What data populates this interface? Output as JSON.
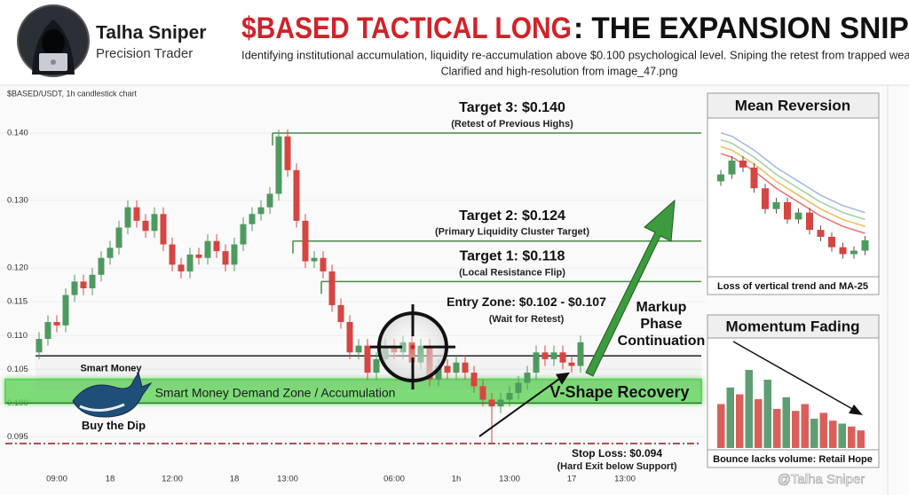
{
  "header": {
    "name": "Talha Sniper",
    "role": "Precision Trader",
    "title_highlight": "$BASED TACTICAL LONG",
    "title_rest": ": THE EXPANSION SNIPE",
    "subtitle": "Identifying institutional accumulation, liquidity re-accumulation above $0.100 psychological level. Sniping the retest from trapped weak",
    "note": "Clarified and high-resolution from image_47.png"
  },
  "chart_data": {
    "type": "candlestick",
    "title": "$BASED/USDT, 1h candlestick chart",
    "up_color": "#4e9a5e",
    "down_color": "#d64541",
    "grid": true,
    "ylim": [
      0.0894,
      0.1442
    ],
    "yticks": [
      {
        "value": 0.14,
        "label": "0.140"
      },
      {
        "value": 0.13,
        "label": "0.130"
      },
      {
        "value": 0.12,
        "label": "0.120"
      },
      0.115,
      {
        "value": 0.11,
        "label": "0.110"
      },
      0.105,
      {
        "value": 0.1,
        "label": "0.100"
      },
      0.095
    ],
    "categories": [
      null,
      null,
      "09:00",
      null,
      null,
      null,
      null,
      null,
      "18",
      null,
      null,
      null,
      null,
      null,
      null,
      "12:00",
      null,
      null,
      null,
      null,
      null,
      null,
      "18",
      null,
      null,
      null,
      null,
      null,
      "13:00",
      null,
      null,
      null,
      null,
      null,
      null,
      null,
      null,
      null,
      null,
      null,
      "06:00",
      null,
      null,
      null,
      null,
      null,
      null,
      "1h",
      null,
      null,
      null,
      null,
      null,
      "13:00",
      null,
      null,
      null,
      null,
      null,
      null,
      "17",
      null,
      null,
      null,
      null,
      null,
      "13:00",
      null
    ],
    "open": [
      0.1075,
      0.1095,
      0.112,
      0.1115,
      0.116,
      0.118,
      0.117,
      0.119,
      0.1215,
      0.123,
      0.126,
      0.129,
      0.127,
      0.1255,
      0.128,
      0.1235,
      0.1205,
      0.1195,
      0.122,
      0.1215,
      0.124,
      0.1225,
      0.1205,
      0.1235,
      0.1265,
      0.128,
      0.129,
      0.131,
      0.1395,
      0.1345,
      0.127,
      0.121,
      0.1215,
      0.1195,
      0.1145,
      0.112,
      0.1075,
      0.1085,
      0.1045,
      0.1065,
      0.1085,
      0.1075,
      0.109,
      0.106,
      0.1085,
      0.1035,
      0.1055,
      0.1045,
      0.106,
      0.1045,
      0.1025,
      0.1005,
      0.0995,
      0.1005,
      0.1015,
      0.103,
      0.1045,
      0.1075,
      0.1065,
      0.1075,
      0.106,
      0.1055,
      null,
      null,
      null,
      null,
      null,
      null
    ],
    "high": [
      0.1105,
      0.113,
      0.113,
      0.117,
      0.119,
      0.119,
      0.12,
      0.1225,
      0.124,
      0.127,
      0.13,
      0.13,
      0.128,
      0.129,
      0.129,
      0.1245,
      0.1215,
      0.123,
      0.123,
      0.125,
      0.125,
      0.1235,
      0.1245,
      0.1275,
      0.129,
      0.13,
      0.132,
      0.1405,
      0.1405,
      0.1355,
      0.128,
      0.1225,
      0.1225,
      0.1205,
      0.1155,
      0.113,
      0.1095,
      0.1095,
      0.1075,
      0.1095,
      0.1095,
      0.11,
      0.11,
      0.1095,
      0.1095,
      0.1065,
      0.1065,
      0.107,
      0.107,
      0.1055,
      0.1035,
      0.1015,
      0.1015,
      0.1025,
      0.104,
      0.1055,
      0.1085,
      0.1085,
      0.1085,
      0.1085,
      0.107,
      0.11,
      null,
      null,
      null,
      null,
      null,
      null
    ],
    "low": [
      0.1065,
      0.1085,
      0.1105,
      0.1105,
      0.115,
      0.116,
      0.116,
      0.118,
      0.1205,
      0.122,
      0.125,
      0.126,
      0.1245,
      0.1245,
      0.1225,
      0.1195,
      0.1185,
      0.1185,
      0.1205,
      0.1205,
      0.1215,
      0.1195,
      0.1195,
      0.1225,
      0.1255,
      0.127,
      0.128,
      0.13,
      0.1335,
      0.126,
      0.12,
      0.12,
      0.1185,
      0.1135,
      0.111,
      0.1065,
      0.1065,
      0.1035,
      0.1035,
      0.1055,
      0.1065,
      0.1065,
      0.105,
      0.105,
      0.1025,
      0.1025,
      0.1035,
      0.1035,
      0.1035,
      0.1015,
      0.0995,
      0.094,
      0.0985,
      0.0995,
      0.1005,
      0.102,
      0.1035,
      0.1055,
      0.1055,
      0.105,
      0.1045,
      0.1045,
      null,
      null,
      null,
      null,
      null,
      null
    ],
    "close": [
      0.1095,
      0.112,
      0.1115,
      0.116,
      0.118,
      0.117,
      0.119,
      0.1215,
      0.123,
      0.126,
      0.129,
      0.127,
      0.1255,
      0.128,
      0.1235,
      0.1205,
      0.1195,
      0.122,
      0.1215,
      0.124,
      0.1225,
      0.1205,
      0.1235,
      0.1265,
      0.128,
      0.129,
      0.131,
      0.1395,
      0.1345,
      0.127,
      0.121,
      0.1215,
      0.1195,
      0.1145,
      0.112,
      0.1075,
      0.1085,
      0.1045,
      0.1065,
      0.1085,
      0.1075,
      0.109,
      0.106,
      0.1085,
      0.1035,
      0.1055,
      0.1045,
      0.106,
      0.1045,
      0.1025,
      0.1005,
      0.0995,
      0.1005,
      0.1015,
      0.103,
      0.1045,
      0.1075,
      0.1065,
      0.1075,
      0.106,
      0.1055,
      0.109,
      null,
      null,
      null,
      null,
      null,
      null
    ],
    "targets": [
      {
        "label": "Target 3: $0.140",
        "note": "(Retest of Previous Highs)",
        "value": 0.14,
        "color": "#4a8a4a"
      },
      {
        "label": "Target 2: $0.124",
        "note": "(Primary Liquidity Cluster Target)",
        "value": 0.124,
        "color": "#4a8a4a"
      },
      {
        "label": "Target 1: $0.118",
        "note": "(Local Resistance Flip)",
        "value": 0.118,
        "color": "#4a8a4a"
      }
    ],
    "entry": {
      "label": "Entry Zone: $0.102 - $0.107",
      "note": "(Wait for Retest)",
      "low": 0.102,
      "high": 0.107,
      "color": "#222222"
    },
    "stop": {
      "label": "Stop Loss: $0.094",
      "note": "(Hard Exit below Support)",
      "value": 0.094,
      "color": "#8b1a1a"
    },
    "demand_zone": {
      "label": "Smart Money Demand Zone / Accumulation",
      "low": 0.1,
      "high": 0.1035,
      "color": "#5fd35a"
    },
    "whale": {
      "top": "Smart Money",
      "bottom": "Buy the Dip"
    },
    "recovery": "V-Shape Recovery",
    "markup": [
      "Markup",
      "Phase",
      "Continuation"
    ]
  },
  "insets": {
    "mean_reversion": {
      "title": "Mean Reversion",
      "caption": "Loss of vertical trend and MA-25",
      "ylim": [
        10,
        95
      ],
      "open": [
        62,
        66,
        74,
        70,
        58,
        46,
        50,
        40,
        44,
        34,
        30,
        24,
        20,
        22
      ],
      "close": [
        66,
        74,
        70,
        58,
        46,
        50,
        40,
        44,
        34,
        30,
        24,
        20,
        22,
        28
      ],
      "ma": [
        {
          "color": "#e57373",
          "values": [
            78,
            76,
            72,
            68,
            63,
            58,
            54,
            50,
            46,
            42,
            39,
            36,
            34,
            32
          ]
        },
        {
          "color": "#f0b85a",
          "values": [
            82,
            80,
            76,
            72,
            67,
            62,
            58,
            54,
            50,
            46,
            43,
            40,
            38,
            36
          ]
        },
        {
          "color": "#9fd0a0",
          "values": [
            86,
            84,
            80,
            76,
            71,
            66,
            62,
            58,
            54,
            50,
            47,
            44,
            42,
            40
          ]
        },
        {
          "color": "#9fb8e0",
          "values": [
            90,
            88,
            84,
            80,
            75,
            70,
            66,
            62,
            58,
            54,
            51,
            48,
            46,
            44
          ]
        }
      ]
    },
    "momentum": {
      "title": "Momentum Fading",
      "caption": "Bounce lacks volume: Retail Hope",
      "ylim": [
        0,
        100
      ],
      "values": [
        45,
        62,
        55,
        80,
        50,
        70,
        40,
        52,
        38,
        45,
        30,
        36,
        28,
        25,
        22,
        18
      ],
      "colors": [
        "#d9605a",
        "#5f9e72",
        "#d9605a",
        "#5f9e72",
        "#d9605a",
        "#5f9e72",
        "#d9605a",
        "#5f9e72",
        "#d9605a",
        "#d9605a",
        "#5f9e72",
        "#d9605a",
        "#d9605a",
        "#5f9e72",
        "#d9605a",
        "#d9605a"
      ]
    }
  },
  "watermark": "@Talha Sniper"
}
